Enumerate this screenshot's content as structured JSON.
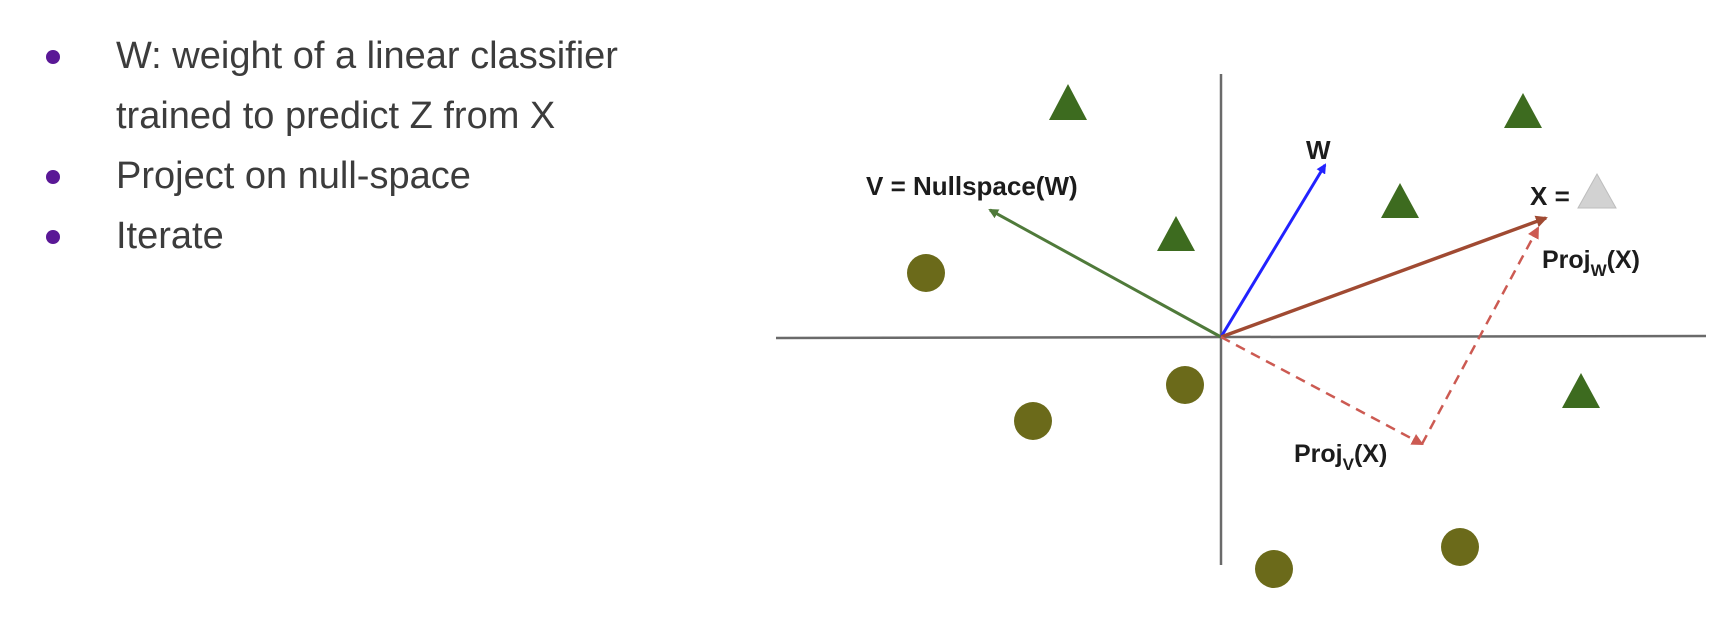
{
  "bullets": [
    {
      "lines": [
        "W: weight of a linear classifier",
        "trained to predict Z from X"
      ]
    },
    {
      "lines": [
        "Project on null-space"
      ]
    },
    {
      "lines": [
        "Iterate"
      ]
    }
  ],
  "diagram": {
    "labels": {
      "nullspace": "V = Nullspace(W)",
      "w": "W",
      "x_prefix": "X =",
      "proj_w": "Proj",
      "proj_w_sub": "W",
      "proj_w_suffix": "(X)",
      "proj_v": "Proj",
      "proj_v_sub": "V",
      "proj_v_suffix": "(X)"
    }
  },
  "colors": {
    "bullet_dot": "#5a1896",
    "text": "#3c3c3c",
    "axis": "#6a6a6a",
    "triangle": "#3d6b1f",
    "circle": "#6b6a1a",
    "nullspace_arrow": "#4f7a3a",
    "w_arrow": "#2222ff",
    "x_arrow": "#a04a32",
    "proj_dashed": "#cc5a52",
    "x_triangle": "#d2d2d2"
  }
}
